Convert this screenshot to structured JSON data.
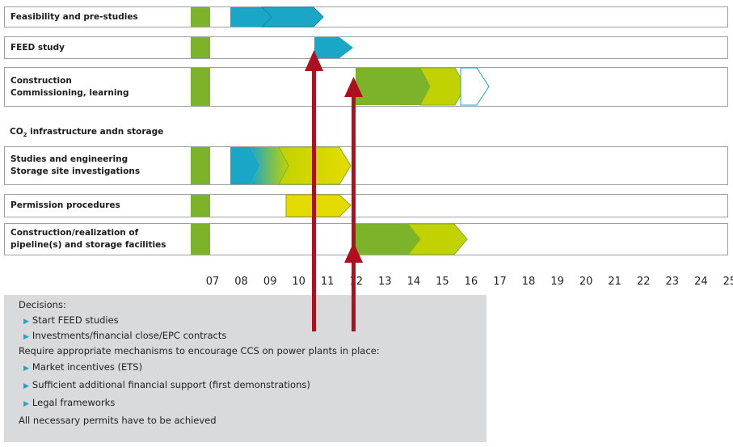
{
  "rows": [
    {
      "label_lines": [
        "Feasibility and pre-studies"
      ]
    },
    {
      "label_lines": [
        "FEED study"
      ]
    },
    {
      "label_lines": [
        "Construction",
        "Commissioning, learning"
      ]
    },
    {
      "label_lines": [
        "Studies and engineering",
        "Storage site investigations"
      ]
    },
    {
      "label_lines": [
        "Permission procedures"
      ]
    },
    {
      "label_lines": [
        "Construction/realization of",
        "pipeline(s) and storage facilities"
      ]
    }
  ],
  "section": {
    "label_prefix": "CO",
    "label_sub": "2",
    "label_suffix": " infrastructure andn storage"
  },
  "years": [
    "07",
    "08",
    "09",
    "10",
    "11",
    "12",
    "13",
    "14",
    "15",
    "16",
    "17",
    "18",
    "19",
    "20",
    "21",
    "22",
    "23",
    "24",
    "25"
  ],
  "decisions": {
    "heading": "Decisions:",
    "items": [
      "Start FEED studies",
      "Investments/financial close/EPC contracts"
    ],
    "requirement": "Require appropriate mechanisms to encourage CCS on power plants in place:",
    "requirement_items": [
      "Market incentives (ETS)",
      "Sufficient additional financial support (first demonstrations)",
      "Legal frameworks"
    ],
    "footer": "All necessary permits have to be achieved"
  },
  "colors": {
    "green": "#7cb32a",
    "blue": "#1aa7c7",
    "lime": "#c2d200",
    "yellow": "#e4dc00",
    "red": "#b0101e",
    "panel": "#d9dadb"
  }
}
